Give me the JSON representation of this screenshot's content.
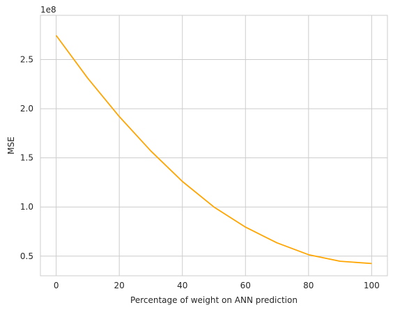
{
  "chart_data": {
    "type": "line",
    "xlabel": "Percentage of weight on ANN prediction",
    "ylabel": "MSE",
    "y_scale_label": "1e8",
    "x_ticks": [
      "0",
      "20",
      "40",
      "60",
      "80",
      "100"
    ],
    "y_ticks": [
      "0.5",
      "1.0",
      "1.5",
      "2.0",
      "2.5"
    ],
    "grid": true,
    "series": [
      {
        "color": "#FFA500",
        "x": [
          0,
          10,
          20,
          30,
          40,
          50,
          60,
          70,
          80,
          90,
          100
        ],
        "y": [
          2.745,
          2.31,
          1.92,
          1.57,
          1.26,
          1.0,
          0.795,
          0.635,
          0.515,
          0.448,
          0.425
        ]
      }
    ]
  }
}
